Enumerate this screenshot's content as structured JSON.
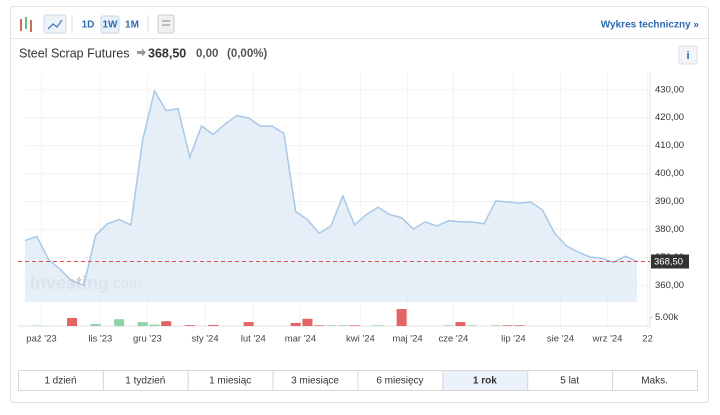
{
  "toolbar": {
    "intervals": [
      "1D",
      "1W",
      "1M"
    ],
    "active_interval": 1,
    "link": "Wykres techniczny »"
  },
  "header": {
    "name": "Steel Scrap Futures",
    "change": "0,00",
    "change_pct": "(0,00%)",
    "info": "i"
  },
  "watermark": {
    "brand": "Investing",
    "suffix": ".com"
  },
  "ranges": {
    "buttons": [
      "1 dzień",
      "1 tydzień",
      "1 miesiąc",
      "3 miesiące",
      "6 miesięcy",
      "1 rok",
      "5 lat",
      "Maks."
    ],
    "active": 5
  },
  "chart_data": {
    "type": "area",
    "values": [
      376.0,
      377.5,
      369.3,
      365.6,
      361.5,
      360.0,
      377.9,
      382.0,
      383.5,
      381.6,
      412.1,
      429.6,
      422.5,
      423.3,
      405.8,
      417.0,
      414.0,
      417.7,
      420.7,
      419.9,
      417.0,
      417.0,
      414.4,
      386.4,
      383.5,
      378.6,
      381.2,
      392.0,
      381.6,
      385.3,
      387.9,
      385.3,
      384.2,
      380.1,
      382.7,
      381.2,
      383.1,
      382.7,
      382.7,
      382.0,
      390.2,
      389.8,
      389.4,
      389.8,
      386.8,
      378.6,
      374.1,
      371.9,
      370.1,
      369.7,
      368.2,
      370.4,
      368.5
    ],
    "color": "#a8c8e8",
    "fill": "#dde9f5",
    "ylim": [
      354,
      436
    ],
    "yticks": [
      {
        "value": 360,
        "label": "360,00"
      },
      {
        "value": 370,
        "label": "370,00"
      },
      {
        "value": 380,
        "label": "380,00"
      },
      {
        "value": 390,
        "label": "390,00"
      },
      {
        "value": 400,
        "label": "400,00"
      },
      {
        "value": 410,
        "label": "410,00"
      },
      {
        "value": 420,
        "label": "420,00"
      },
      {
        "value": 430,
        "label": "430,00"
      }
    ],
    "xlim": [
      0,
      52
    ],
    "xticks": [
      {
        "value": 1.4,
        "label": "paź '23"
      },
      {
        "value": 6.4,
        "label": "lis '23"
      },
      {
        "value": 10.4,
        "label": "gru '23"
      },
      {
        "value": 15.3,
        "label": "sty '24"
      },
      {
        "value": 19.4,
        "label": "lut '24"
      },
      {
        "value": 23.4,
        "label": "mar '24"
      },
      {
        "value": 28.5,
        "label": "kwi '24"
      },
      {
        "value": 32.5,
        "label": "maj '24"
      },
      {
        "value": 36.4,
        "label": "cze '24"
      },
      {
        "value": 41.5,
        "label": "lip '24"
      },
      {
        "value": 45.5,
        "label": "sie '24"
      },
      {
        "value": 49.5,
        "label": "wrz '24"
      },
      {
        "value": 52.9,
        "label": "22"
      }
    ],
    "grid": true,
    "last_price": {
      "value": 368.5,
      "label": "368,50",
      "color": "#e0504a"
    },
    "volume": {
      "values": [
        0,
        300,
        0,
        0,
        4700,
        0,
        1200,
        0,
        4000,
        0,
        2300,
        800,
        2800,
        0,
        500,
        0,
        600,
        0,
        0,
        2300,
        0,
        0,
        0,
        1800,
        4200,
        400,
        400,
        400,
        400,
        0,
        400,
        0,
        9900,
        0,
        0,
        0,
        400,
        2300,
        400,
        0,
        400,
        400,
        400,
        0,
        0,
        0,
        0,
        0,
        0,
        0,
        0,
        0,
        0
      ],
      "ylim": [
        0,
        14000
      ],
      "yticks": [
        {
          "value": 5000,
          "label": "5.00k"
        }
      ],
      "up_color": "#8fd4a8",
      "down_color": "#e26464"
    }
  }
}
